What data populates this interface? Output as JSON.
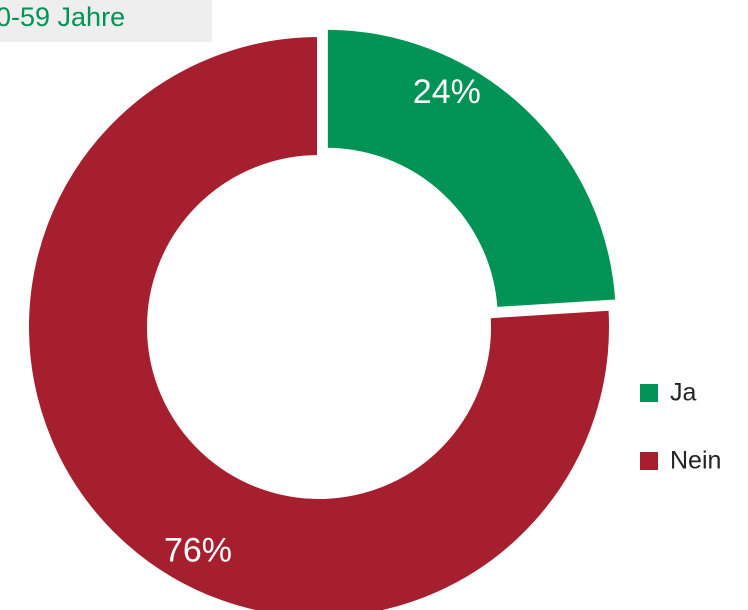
{
  "chart_data": {
    "type": "donut",
    "title": "0-59 Jahre",
    "categories": [
      "Ja",
      "Nein"
    ],
    "values": [
      24,
      76
    ],
    "value_labels": [
      "24%",
      "76%"
    ],
    "colors": [
      "#009356",
      "#a51f2f"
    ],
    "legend": "right"
  }
}
